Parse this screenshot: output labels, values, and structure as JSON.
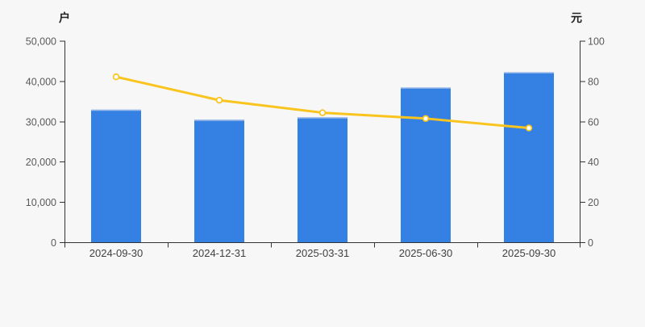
{
  "chart_data": {
    "type": "combo-bar-line",
    "categories": [
      "2024-09-30",
      "2024-12-31",
      "2025-03-31",
      "2025-06-30",
      "2025-09-30"
    ],
    "series": [
      {
        "name": "holder-count-bars",
        "type": "bar",
        "axis": "left",
        "color": "#3581e3",
        "bar_top_highlight_color": "#9dbbe8",
        "values": [
          33000,
          30500,
          31100,
          38500,
          42300
        ]
      },
      {
        "name": "price-line",
        "type": "line",
        "axis": "right",
        "color": "#fac41e",
        "marker": "hollow-circle",
        "marker_fill": "#ffffff",
        "values": [
          82.3,
          70.7,
          64.5,
          61.6,
          56.9
        ]
      }
    ],
    "left_axis": {
      "name": "户",
      "min": 0,
      "max": 50000,
      "tick_labels": [
        "0",
        "10,000",
        "20,000",
        "30,000",
        "40,000",
        "50,000"
      ]
    },
    "right_axis": {
      "name": "元",
      "min": 0,
      "max": 100,
      "tick_labels": [
        "0",
        "20",
        "40",
        "60",
        "80",
        "100"
      ]
    },
    "grid": false,
    "legend": null,
    "background_color": "#f7f7f7",
    "axis_color": "#333333",
    "tick_label_color": "#5a5a5a",
    "category_label_color": "#404040"
  }
}
